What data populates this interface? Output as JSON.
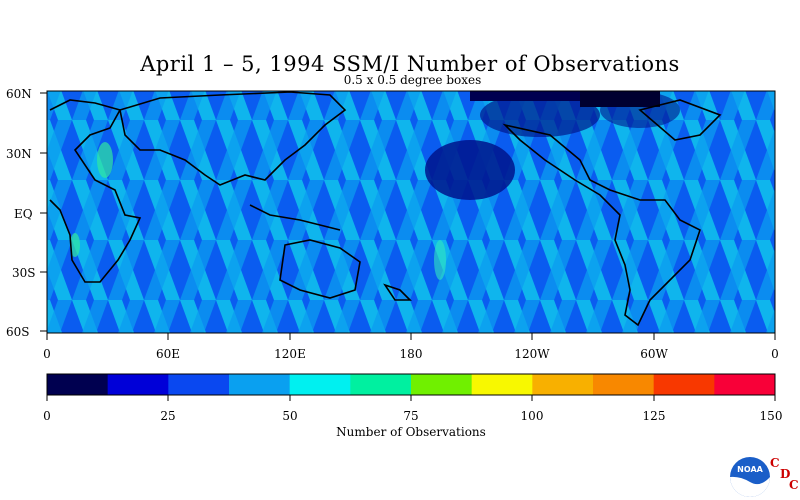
{
  "title": "April 1 – 5, 1994 SSM/I Number of Observations",
  "subtitle": "0.5 x 0.5 degree boxes",
  "lat_labels": [
    "60N",
    "30N",
    "EQ",
    "30S",
    "60S"
  ],
  "lon_labels": [
    "0",
    "60E",
    "120E",
    "180",
    "120W",
    "60W",
    "0"
  ],
  "colorbar": {
    "title": "Number of Observations",
    "tick_labels": [
      "0",
      "25",
      "50",
      "75",
      "100",
      "125",
      "150"
    ],
    "colors": [
      "#000050",
      "#0000d8",
      "#0a48f0",
      "#0aa0f0",
      "#00f0f0",
      "#00f0a0",
      "#70f000",
      "#f8f800",
      "#f8b000",
      "#f88800",
      "#f83800",
      "#f80038"
    ]
  },
  "logo": {
    "badge_text": "NOAA",
    "letters": [
      "C",
      "D",
      "C"
    ]
  }
}
